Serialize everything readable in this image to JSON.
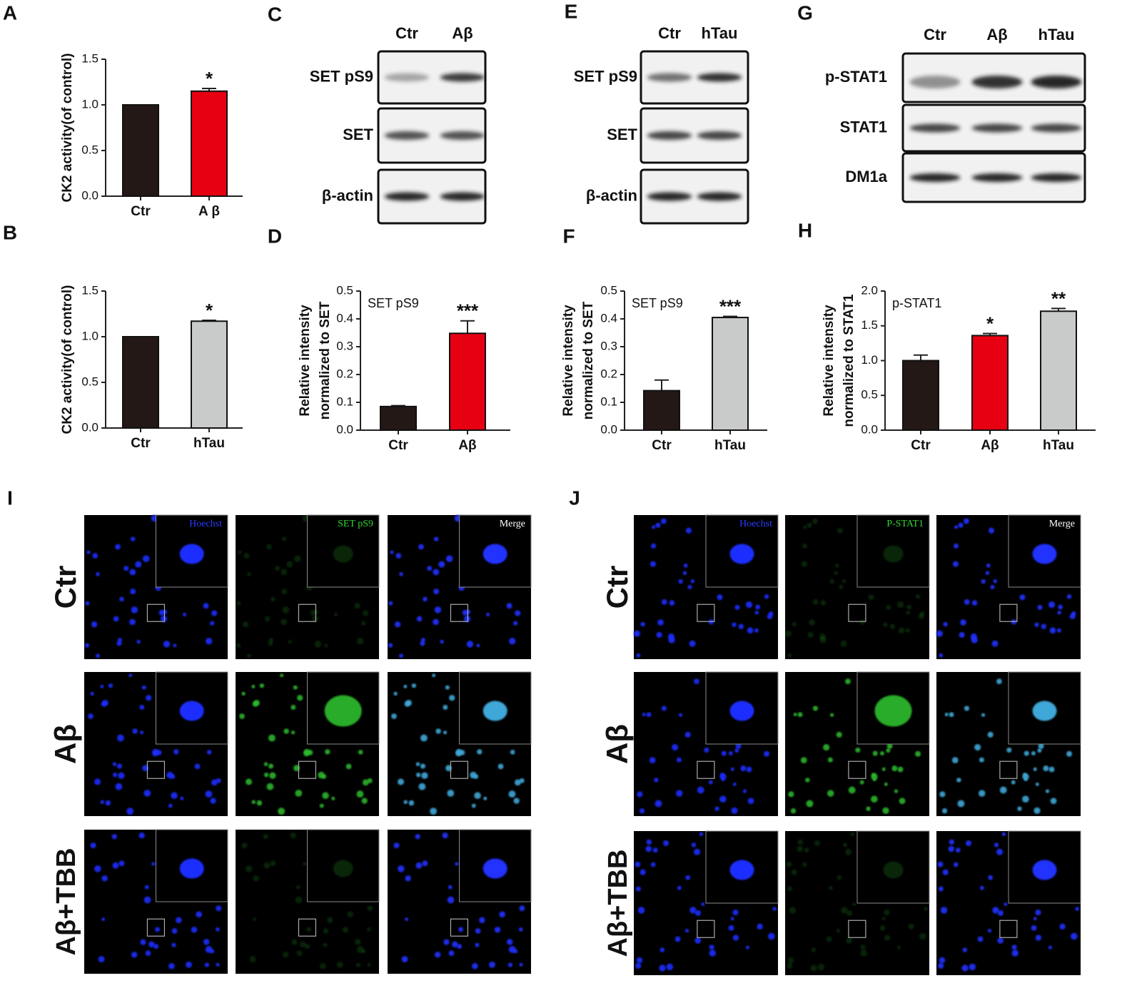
{
  "chart_data": [
    {
      "type": "bar",
      "panel": "A",
      "ylabel": [
        "CK2 activity(of control)"
      ],
      "categories": [
        "Ctr",
        "A β"
      ],
      "values": [
        1.0,
        1.15
      ],
      "errors": [
        0,
        0.03
      ],
      "colors": [
        "#231815",
        "#e60012"
      ],
      "significance": [
        null,
        "*"
      ],
      "ylim": [
        0,
        1.5
      ],
      "yticks": [
        {
          "value": 0,
          "label": "0.0"
        },
        0.5,
        {
          "value": 1,
          "label": "1.0"
        },
        1.5
      ]
    },
    {
      "type": "bar",
      "panel": "B",
      "ylabel": [
        "CK2 activity(of control)"
      ],
      "categories": [
        "Ctr",
        "hTau"
      ],
      "values": [
        1.0,
        1.17
      ],
      "errors": [
        0,
        0.01
      ],
      "colors": [
        "#231815",
        "#c9caca"
      ],
      "significance": [
        null,
        "*"
      ],
      "ylim": [
        0,
        1.5
      ],
      "yticks": [
        {
          "value": 0,
          "label": "0.0"
        },
        0.5,
        {
          "value": 1,
          "label": "1.0"
        },
        1.5
      ]
    },
    {
      "type": "bar",
      "panel": "D",
      "inset_title": "SET pS9",
      "ylabel": [
        "Relative intensity",
        "normalized to SET"
      ],
      "categories": [
        "Ctr",
        "Aβ"
      ],
      "values": [
        0.085,
        0.348
      ],
      "errors": [
        0.003,
        0.045
      ],
      "colors": [
        "#231815",
        "#e60012"
      ],
      "significance": [
        null,
        "***"
      ],
      "ylim": [
        0,
        0.5
      ],
      "yticks": [
        {
          "value": 0,
          "label": "0.0"
        },
        0.1,
        0.2,
        0.3,
        0.4,
        0.5
      ]
    },
    {
      "type": "bar",
      "panel": "F",
      "inset_title": "SET pS9",
      "ylabel": [
        "Relative intensity",
        "normalized to SET"
      ],
      "categories": [
        "Ctr",
        "hTau"
      ],
      "values": [
        0.142,
        0.405
      ],
      "errors": [
        0.038,
        0.004
      ],
      "colors": [
        "#231815",
        "#c9caca"
      ],
      "significance": [
        null,
        "***"
      ],
      "ylim": [
        0,
        0.5
      ],
      "yticks": [
        {
          "value": 0,
          "label": "0.0"
        },
        0.1,
        0.2,
        0.3,
        0.4,
        0.5
      ]
    },
    {
      "type": "bar",
      "panel": "H",
      "inset_title": "p-STAT1",
      "ylabel": [
        "Relative intensity",
        "normalized to STAT1"
      ],
      "categories": [
        "Ctr",
        "Aβ",
        "hTau"
      ],
      "values": [
        1.0,
        1.36,
        1.71
      ],
      "errors": [
        0.08,
        0.03,
        0.04
      ],
      "colors": [
        "#231815",
        "#e60012",
        "#c9caca"
      ],
      "significance": [
        null,
        "*",
        "**"
      ],
      "ylim": [
        0,
        2.0
      ],
      "yticks": [
        {
          "value": 0,
          "label": "0.0"
        },
        0.5,
        {
          "value": 1,
          "label": "1.0"
        },
        1.5,
        {
          "value": 2,
          "label": "2.0"
        }
      ]
    }
  ],
  "blots": [
    {
      "panel": "C",
      "lanes": [
        "Ctr",
        "Aβ"
      ],
      "rows": [
        "SET pS9",
        "SET",
        "β-actin"
      ]
    },
    {
      "panel": "E",
      "lanes": [
        "Ctr",
        "hTau"
      ],
      "rows": [
        "SET pS9",
        "SET",
        "β-actin"
      ]
    },
    {
      "panel": "G",
      "lanes": [
        "Ctr",
        "Aβ",
        "hTau"
      ],
      "rows": [
        "p-STAT1",
        "STAT1",
        "DM1a"
      ]
    }
  ],
  "microscopy": [
    {
      "panel": "I",
      "channels": [
        "Hoechst",
        "SET pS9",
        "Merge"
      ],
      "conditions": [
        "Ctr",
        "Aβ",
        "Aβ+TBB"
      ]
    },
    {
      "panel": "J",
      "channels": [
        "Hoechst",
        "P-STAT1",
        "Merge"
      ],
      "conditions": [
        "Ctr",
        "Aβ",
        "Aβ+TBB"
      ]
    }
  ]
}
